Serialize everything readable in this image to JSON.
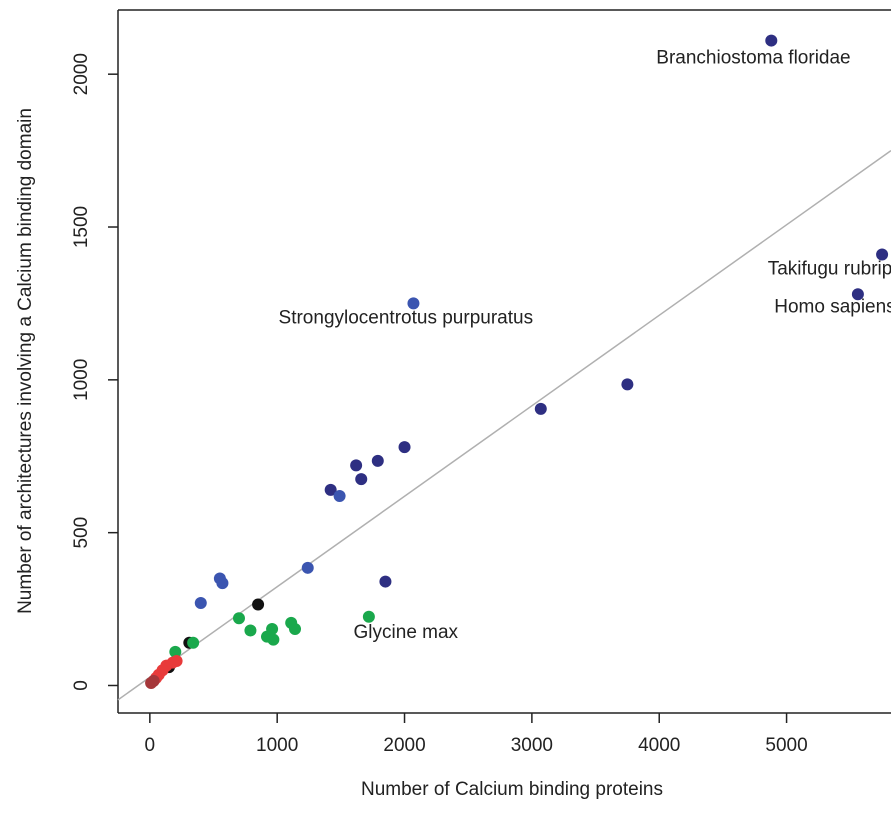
{
  "chart_data": {
    "type": "scatter",
    "xlabel": "Number of Calcium binding proteins",
    "ylabel": "Number of architectures involving a Calcium binding domain",
    "xlim": [
      -250,
      5820
    ],
    "ylim": [
      -90,
      2210
    ],
    "x_ticks": [
      0,
      1000,
      2000,
      3000,
      4000,
      5000
    ],
    "y_ticks": [
      0,
      500,
      1000,
      1500,
      2000
    ],
    "x_tick_labels": [
      "0",
      "1000",
      "2000",
      "3000",
      "4000",
      "5000"
    ],
    "y_tick_labels": [
      "0",
      "500",
      "1000",
      "1500",
      "2000"
    ],
    "grid": false,
    "legend": "none",
    "colors": {
      "navy": "#2e2f82",
      "blue": "#3b55b0",
      "green": "#1aa84c",
      "black": "#111111",
      "red": "#e83a3a",
      "brown": "#a5373a",
      "fit_line": "#b0b0b0"
    },
    "fit_line": {
      "x": [
        -250,
        5820
      ],
      "y": [
        -47,
        1750
      ]
    },
    "points": [
      {
        "x": 4880,
        "y": 2110,
        "color": "navy"
      },
      {
        "x": 5750,
        "y": 1410,
        "color": "navy"
      },
      {
        "x": 5560,
        "y": 1280,
        "color": "navy"
      },
      {
        "x": 3750,
        "y": 985,
        "color": "navy"
      },
      {
        "x": 3070,
        "y": 905,
        "color": "navy"
      },
      {
        "x": 2070,
        "y": 1250,
        "color": "blue"
      },
      {
        "x": 2000,
        "y": 780,
        "color": "navy"
      },
      {
        "x": 1790,
        "y": 735,
        "color": "navy"
      },
      {
        "x": 1620,
        "y": 720,
        "color": "navy"
      },
      {
        "x": 1660,
        "y": 675,
        "color": "navy"
      },
      {
        "x": 1420,
        "y": 640,
        "color": "navy"
      },
      {
        "x": 1490,
        "y": 620,
        "color": "blue"
      },
      {
        "x": 1850,
        "y": 340,
        "color": "navy"
      },
      {
        "x": 1240,
        "y": 385,
        "color": "blue"
      },
      {
        "x": 550,
        "y": 350,
        "color": "blue"
      },
      {
        "x": 570,
        "y": 335,
        "color": "blue"
      },
      {
        "x": 400,
        "y": 270,
        "color": "blue"
      },
      {
        "x": 850,
        "y": 265,
        "color": "black"
      },
      {
        "x": 310,
        "y": 140,
        "color": "black"
      },
      {
        "x": 150,
        "y": 60,
        "color": "black"
      },
      {
        "x": 1720,
        "y": 225,
        "color": "green"
      },
      {
        "x": 700,
        "y": 220,
        "color": "green"
      },
      {
        "x": 1110,
        "y": 205,
        "color": "green"
      },
      {
        "x": 1140,
        "y": 185,
        "color": "green"
      },
      {
        "x": 960,
        "y": 185,
        "color": "green"
      },
      {
        "x": 790,
        "y": 180,
        "color": "green"
      },
      {
        "x": 920,
        "y": 160,
        "color": "green"
      },
      {
        "x": 970,
        "y": 150,
        "color": "green"
      },
      {
        "x": 340,
        "y": 140,
        "color": "green"
      },
      {
        "x": 200,
        "y": 110,
        "color": "green"
      },
      {
        "x": 210,
        "y": 80,
        "color": "red"
      },
      {
        "x": 180,
        "y": 75,
        "color": "red"
      },
      {
        "x": 130,
        "y": 65,
        "color": "red"
      },
      {
        "x": 100,
        "y": 50,
        "color": "red"
      },
      {
        "x": 70,
        "y": 35,
        "color": "red"
      },
      {
        "x": 50,
        "y": 25,
        "color": "red"
      },
      {
        "x": 30,
        "y": 15,
        "color": "brown"
      },
      {
        "x": 10,
        "y": 8,
        "color": "brown"
      }
    ],
    "annotations": [
      {
        "text": "Branchiostoma floridae",
        "x": 4740,
        "y": 2035,
        "anchor": "middle"
      },
      {
        "text": "Takifugu rubripes",
        "x": 5420,
        "y": 1345,
        "anchor": "middle"
      },
      {
        "text": "Homo sapiens",
        "x": 5380,
        "y": 1220,
        "anchor": "middle"
      },
      {
        "text": "Strongylocentrotus purpuratus",
        "x": 2010,
        "y": 1185,
        "anchor": "middle"
      },
      {
        "text": "Glycine max",
        "x": 2010,
        "y": 155,
        "anchor": "middle"
      }
    ]
  }
}
